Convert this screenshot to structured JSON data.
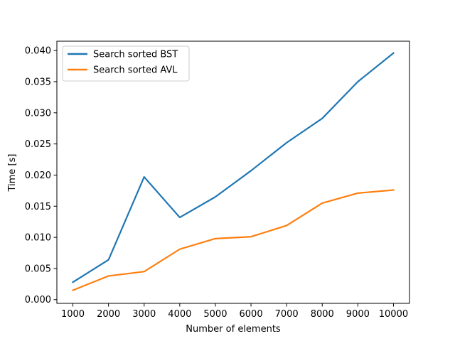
{
  "chart_data": {
    "type": "line",
    "title": "",
    "xlabel": "Number of elements",
    "ylabel": "Time [s]",
    "x": [
      1000,
      2000,
      3000,
      4000,
      5000,
      6000,
      7000,
      8000,
      9000,
      10000
    ],
    "x_ticks": [
      1000,
      2000,
      3000,
      4000,
      5000,
      6000,
      7000,
      8000,
      9000,
      10000
    ],
    "y_ticks": [
      "0.000",
      "0.005",
      "0.010",
      "0.015",
      "0.020",
      "0.025",
      "0.030",
      "0.035",
      "0.040"
    ],
    "xlim": [
      550,
      10450
    ],
    "ylim": [
      -0.0006,
      0.0415
    ],
    "grid": false,
    "legend_position": "top-left",
    "series": [
      {
        "name": "Search sorted BST",
        "color": "#1f77b4",
        "values": [
          0.0028,
          0.0064,
          0.0197,
          0.0132,
          0.0165,
          0.0207,
          0.0252,
          0.0291,
          0.035,
          0.0396
        ]
      },
      {
        "name": "Search sorted AVL",
        "color": "#ff7f0e",
        "values": [
          0.0015,
          0.0038,
          0.0045,
          0.0081,
          0.0098,
          0.0101,
          0.0119,
          0.0155,
          0.0171,
          0.0176
        ]
      }
    ]
  }
}
